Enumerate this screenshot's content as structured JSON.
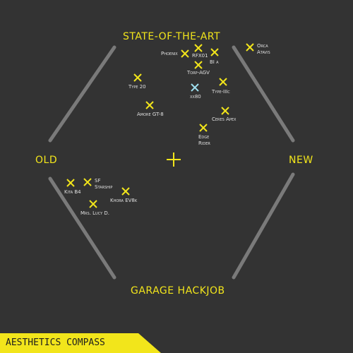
{
  "title": "AESTHETICS COMPASS",
  "axes": {
    "top": "STATE-OF-THE-ART",
    "bottom": "GARAGE HACKJOB",
    "left": "OLD",
    "right": "NEW"
  },
  "colors": {
    "background": "#333333",
    "accent": "#f2e51b",
    "frame": "#7a7a7a",
    "highlight_marker": "#9fe0f0",
    "footer_dark": "#1e1e1e"
  },
  "items": [
    {
      "name": "Phoenix",
      "highlight": false
    },
    {
      "name": "RFX01",
      "highlight": false
    },
    {
      "name": "BI α",
      "highlight": false
    },
    {
      "name": "Orca\nAtavis",
      "highlight": false
    },
    {
      "name": "Torp-AGV",
      "highlight": false
    },
    {
      "name": "Type 20",
      "highlight": false
    },
    {
      "name": "Type-IIIc",
      "highlight": false
    },
    {
      "name": "xx80",
      "highlight": true
    },
    {
      "name": "Amore GT-8",
      "highlight": false
    },
    {
      "name": "Ceres Apex",
      "highlight": false
    },
    {
      "name": "Edge\nRider",
      "highlight": false
    },
    {
      "name": "Kita B4",
      "highlight": false
    },
    {
      "name": "SF\nStarship",
      "highlight": false
    },
    {
      "name": "Khora EV8k",
      "highlight": false
    },
    {
      "name": "Mrs. Lucy D.",
      "highlight": false
    }
  ]
}
